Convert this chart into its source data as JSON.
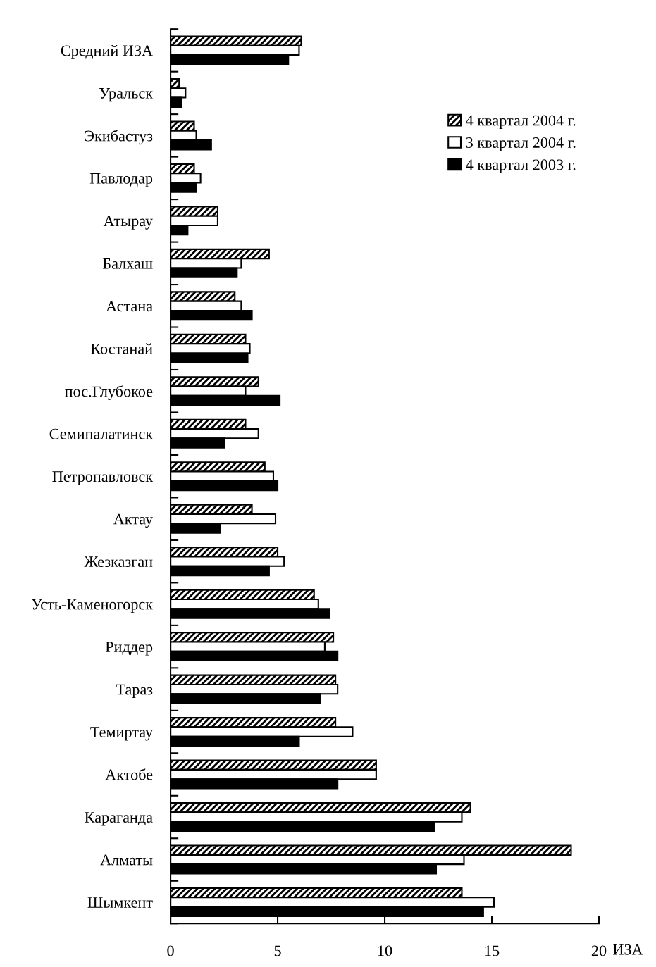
{
  "chart_data": {
    "type": "bar",
    "orientation": "horizontal",
    "xlabel": "ИЗА",
    "categories": [
      "Средний ИЗА",
      "Уральск",
      "Экибастуз",
      "Павлодар",
      "Атырау",
      "Балхаш",
      "Астана",
      "Костанай",
      "пос.Глубокое",
      "Семипалатинск",
      "Петропавловск",
      "Актау",
      "Жезказган",
      "Усть-Каменогорск",
      "Риддер",
      "Тараз",
      "Темиртау",
      "Актобе",
      "Караганда",
      "Алматы",
      "Шымкент"
    ],
    "series": [
      {
        "name": "4 квартал 2004 г.",
        "color": "#000000",
        "values": [
          6.1,
          0.4,
          1.1,
          1.1,
          2.2,
          4.6,
          3.0,
          3.5,
          4.1,
          3.5,
          4.4,
          3.8,
          5.0,
          6.7,
          7.6,
          7.7,
          7.7,
          9.6,
          14.0,
          18.7,
          13.6
        ]
      },
      {
        "name": "3 квартал 2004 г.",
        "color": "#ffffff",
        "values": [
          6.0,
          0.7,
          1.2,
          1.4,
          2.2,
          3.3,
          3.3,
          3.7,
          3.5,
          4.1,
          4.8,
          4.9,
          5.3,
          6.9,
          7.2,
          7.8,
          8.5,
          9.6,
          13.6,
          13.7,
          15.1
        ]
      },
      {
        "name": "4 квартал 2003 г.",
        "color": "#000000",
        "values": [
          5.5,
          0.5,
          1.9,
          1.2,
          0.8,
          3.1,
          3.8,
          3.6,
          5.1,
          2.5,
          5.0,
          2.3,
          4.6,
          7.4,
          7.8,
          7.0,
          6.0,
          7.8,
          12.3,
          12.4,
          14.6
        ]
      }
    ],
    "xlim": [
      0,
      20
    ],
    "xticks": [
      0,
      5,
      10,
      15,
      20
    ],
    "grid": false,
    "legend": "top right"
  }
}
